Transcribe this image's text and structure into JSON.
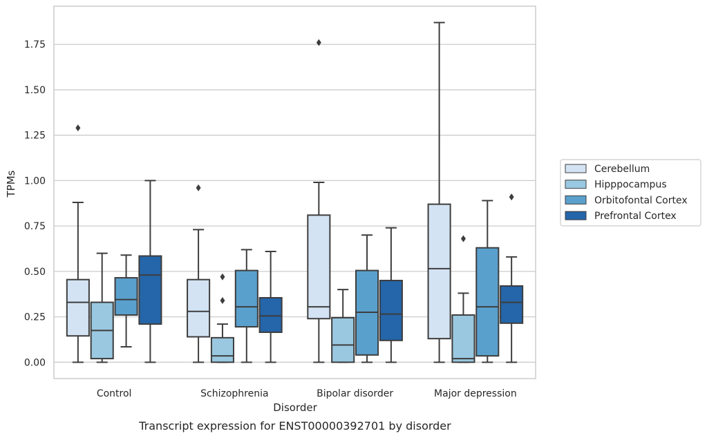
{
  "chart_data": {
    "type": "box",
    "caption": "Transcript expression for ENST00000392701 by disorder",
    "xlabel": "Disorder",
    "ylabel": "TPMs",
    "ylim": [
      -0.09,
      1.96
    ],
    "yticks": [
      0.0,
      0.25,
      0.5,
      0.75,
      1.0,
      1.25,
      1.5,
      1.75
    ],
    "ytick_labels": [
      "0.00",
      "0.25",
      "0.50",
      "0.75",
      "1.00",
      "1.25",
      "1.50",
      "1.75"
    ],
    "grid": "horizontal",
    "legend_position": "right",
    "categories": [
      "Control",
      "Schizophrenia",
      "Bipolar disorder",
      "Major depression"
    ],
    "series": [
      {
        "name": "Cerebellum",
        "color": "#d3e3f3",
        "boxes": [
          {
            "whislo": 0.0,
            "q1": 0.145,
            "med": 0.33,
            "q3": 0.455,
            "whishi": 0.88,
            "fliers": [
              1.29
            ]
          },
          {
            "whislo": 0.0,
            "q1": 0.14,
            "med": 0.28,
            "q3": 0.455,
            "whishi": 0.73,
            "fliers": [
              0.96
            ]
          },
          {
            "whislo": 0.0,
            "q1": 0.24,
            "med": 0.305,
            "q3": 0.81,
            "whishi": 0.99,
            "fliers": [
              1.76
            ]
          },
          {
            "whislo": 0.0,
            "q1": 0.13,
            "med": 0.515,
            "q3": 0.87,
            "whishi": 1.87,
            "fliers": []
          }
        ]
      },
      {
        "name": "Hipppocampus",
        "color": "#9ac8e0",
        "boxes": [
          {
            "whislo": 0.0,
            "q1": 0.02,
            "med": 0.175,
            "q3": 0.33,
            "whishi": 0.6,
            "fliers": []
          },
          {
            "whislo": 0.0,
            "q1": 0.0,
            "med": 0.035,
            "q3": 0.135,
            "whishi": 0.21,
            "fliers": [
              0.34,
              0.47
            ]
          },
          {
            "whislo": 0.0,
            "q1": 0.0,
            "med": 0.095,
            "q3": 0.245,
            "whishi": 0.4,
            "fliers": []
          },
          {
            "whislo": 0.0,
            "q1": 0.0,
            "med": 0.02,
            "q3": 0.26,
            "whishi": 0.38,
            "fliers": [
              0.68
            ]
          }
        ]
      },
      {
        "name": "Orbitofontal Cortex",
        "color": "#5aa0cd",
        "boxes": [
          {
            "whislo": 0.085,
            "q1": 0.26,
            "med": 0.345,
            "q3": 0.465,
            "whishi": 0.59,
            "fliers": []
          },
          {
            "whislo": 0.0,
            "q1": 0.195,
            "med": 0.305,
            "q3": 0.505,
            "whishi": 0.62,
            "fliers": []
          },
          {
            "whislo": 0.0,
            "q1": 0.04,
            "med": 0.275,
            "q3": 0.505,
            "whishi": 0.7,
            "fliers": []
          },
          {
            "whislo": 0.0,
            "q1": 0.035,
            "med": 0.305,
            "q3": 0.63,
            "whishi": 0.89,
            "fliers": []
          }
        ]
      },
      {
        "name": "Prefrontal Cortex",
        "color": "#2565a9",
        "boxes": [
          {
            "whislo": 0.0,
            "q1": 0.21,
            "med": 0.48,
            "q3": 0.585,
            "whishi": 1.0,
            "fliers": []
          },
          {
            "whislo": 0.0,
            "q1": 0.165,
            "med": 0.255,
            "q3": 0.355,
            "whishi": 0.61,
            "fliers": []
          },
          {
            "whislo": 0.0,
            "q1": 0.12,
            "med": 0.265,
            "q3": 0.45,
            "whishi": 0.74,
            "fliers": []
          },
          {
            "whislo": 0.0,
            "q1": 0.215,
            "med": 0.33,
            "q3": 0.42,
            "whishi": 0.58,
            "fliers": [
              0.91
            ]
          }
        ]
      }
    ],
    "colors": {
      "edge": "#3d3d3d",
      "grid": "#cccccc",
      "frame": "#cccccc",
      "text": "#262626"
    }
  }
}
